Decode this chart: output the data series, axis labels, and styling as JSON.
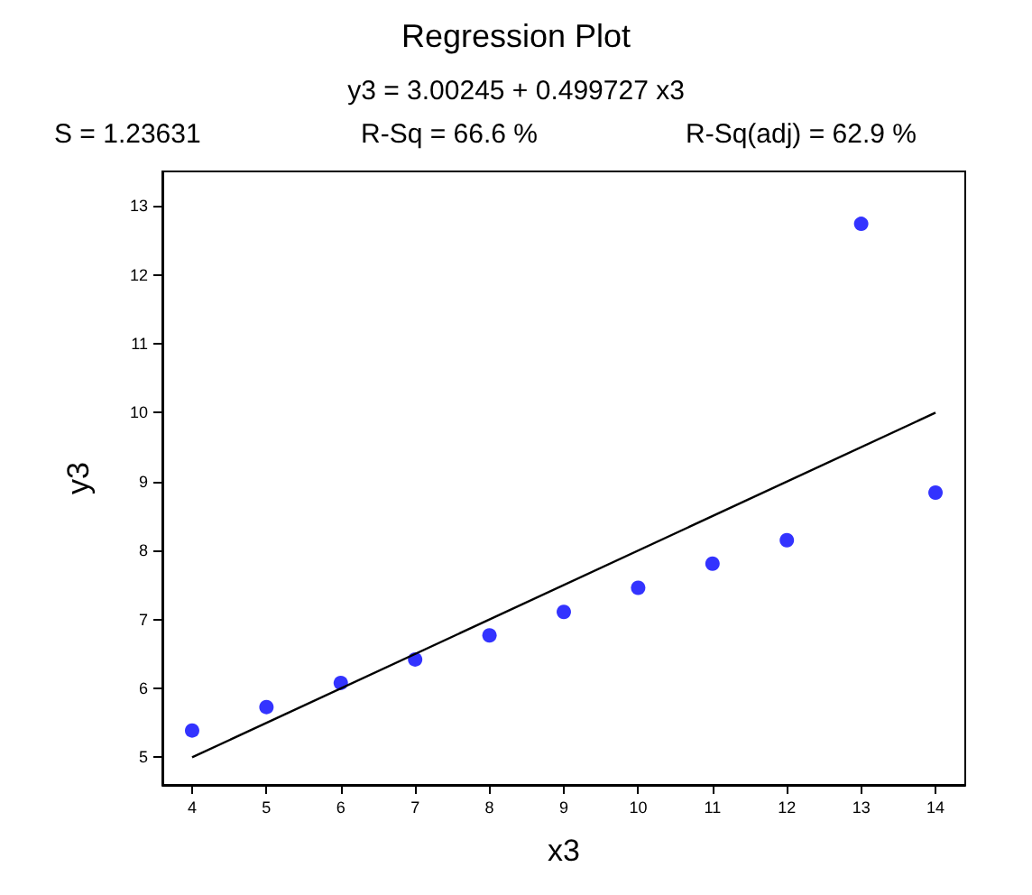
{
  "chart_data": {
    "type": "scatter",
    "title": "Regression Plot",
    "subtitle": "y3 = 3.00245 + 0.499727 x3",
    "annotations": [
      "S = 1.23631",
      "R-Sq = 66.6 %",
      "R-Sq(adj) = 62.9 %"
    ],
    "xlabel": "x3",
    "ylabel": "y3",
    "marker": "circle",
    "grid": false,
    "xlim": [
      3.6,
      14.4
    ],
    "xticks": [
      4,
      5,
      6,
      7,
      8,
      9,
      10,
      11,
      12,
      13,
      14
    ],
    "ylim": [
      4.6,
      13.5
    ],
    "yticks": [
      5,
      6,
      7,
      8,
      9,
      10,
      11,
      12,
      13
    ],
    "series": [
      {
        "color": "#0000ff",
        "x": [
          4,
          5,
          6,
          7,
          8,
          9,
          10,
          11,
          12,
          13,
          14
        ],
        "values": [
          5.39,
          5.73,
          6.08,
          6.42,
          6.77,
          7.11,
          7.46,
          7.81,
          8.15,
          12.74,
          8.84
        ]
      },
      {
        "type": "line",
        "marker": "none",
        "color": "#000000",
        "line_style": "solid",
        "x": [
          4,
          14
        ],
        "values": [
          5.0,
          10.0
        ]
      }
    ]
  }
}
